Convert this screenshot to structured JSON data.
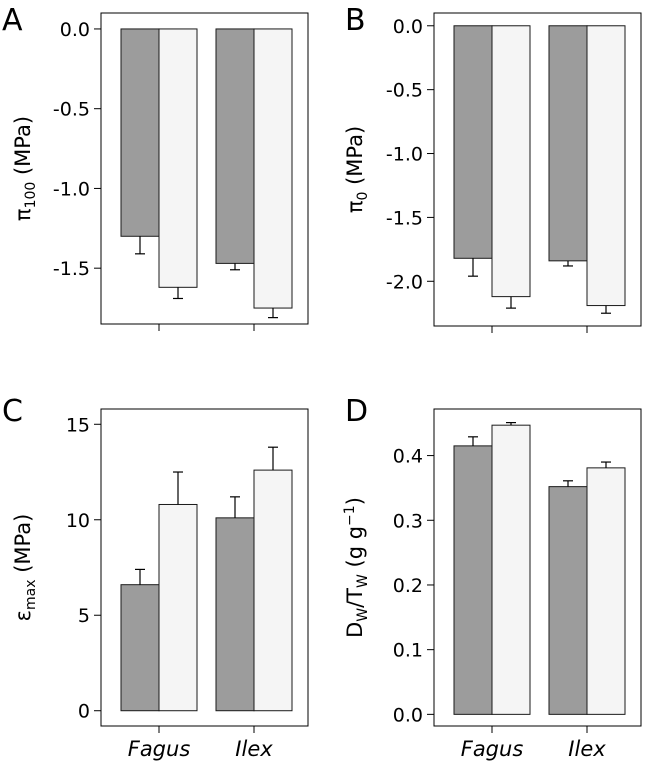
{
  "colors": {
    "series_dark": "#9c9c9c",
    "series_light": "#f5f5f5",
    "axis": "#000000"
  },
  "chart_data": [
    {
      "panel": "A",
      "type": "bar",
      "categories": [
        "Fagus",
        "Ilex"
      ],
      "show_category_labels": false,
      "series": [
        {
          "values": [
            -1.3,
            -1.47
          ],
          "errors": [
            0.11,
            0.04
          ]
        },
        {
          "values": [
            -1.62,
            -1.75
          ],
          "errors": [
            0.07,
            0.06
          ]
        }
      ],
      "ylabel_main": "π",
      "ylabel_sub": "100",
      "ylabel_tail": " (MPa)",
      "ylim": [
        -1.85,
        0.1
      ],
      "yticks": [
        0.0,
        -0.5,
        -1.0,
        -1.5
      ],
      "ytick_labels": [
        "0.0",
        "-0.5",
        "-1.0",
        "-1.5"
      ],
      "grid": false
    },
    {
      "panel": "B",
      "type": "bar",
      "categories": [
        "Fagus",
        "Ilex"
      ],
      "show_category_labels": false,
      "series": [
        {
          "values": [
            -1.82,
            -1.84
          ],
          "errors": [
            0.14,
            0.04
          ]
        },
        {
          "values": [
            -2.12,
            -2.19
          ],
          "errors": [
            0.09,
            0.06
          ]
        }
      ],
      "ylabel_main": "π",
      "ylabel_sub": "0",
      "ylabel_tail": " (MPa)",
      "ylim": [
        -2.35,
        0.1
      ],
      "yticks": [
        0.0,
        -0.5,
        -1.0,
        -1.5,
        -2.0
      ],
      "ytick_labels": [
        "0.0",
        "-0.5",
        "-1.0",
        "-1.5",
        "-2.0"
      ],
      "grid": false
    },
    {
      "panel": "C",
      "type": "bar",
      "categories": [
        "Fagus",
        "Ilex"
      ],
      "show_category_labels": true,
      "series": [
        {
          "values": [
            6.6,
            10.1
          ],
          "errors": [
            0.8,
            1.1
          ]
        },
        {
          "values": [
            10.8,
            12.6
          ],
          "errors": [
            1.7,
            1.2
          ]
        }
      ],
      "ylabel_main": "ε",
      "ylabel_sub": "max",
      "ylabel_tail": " (MPa)",
      "ylim": [
        -0.8,
        15.8
      ],
      "yticks": [
        0,
        5,
        10,
        15
      ],
      "ytick_labels": [
        "0",
        "5",
        "10",
        "15"
      ],
      "grid": false
    },
    {
      "panel": "D",
      "type": "bar",
      "categories": [
        "Fagus",
        "Ilex"
      ],
      "show_category_labels": true,
      "series": [
        {
          "values": [
            0.415,
            0.352
          ],
          "errors": [
            0.014,
            0.009
          ]
        },
        {
          "values": [
            0.447,
            0.381
          ],
          "errors": [
            0.004,
            0.009
          ]
        }
      ],
      "ylabel_main": "D",
      "ylabel_sub": "W",
      "ylabel_mid": "/T",
      "ylabel_sub2": "W",
      "ylabel_tail": " (g g",
      "ylabel_sup": "−1",
      "ylabel_end": ")",
      "ylim": [
        -0.018,
        0.472
      ],
      "yticks": [
        0.0,
        0.1,
        0.2,
        0.3,
        0.4
      ],
      "ytick_labels": [
        "0.0",
        "0.1",
        "0.2",
        "0.3",
        "0.4"
      ],
      "grid": false
    }
  ]
}
